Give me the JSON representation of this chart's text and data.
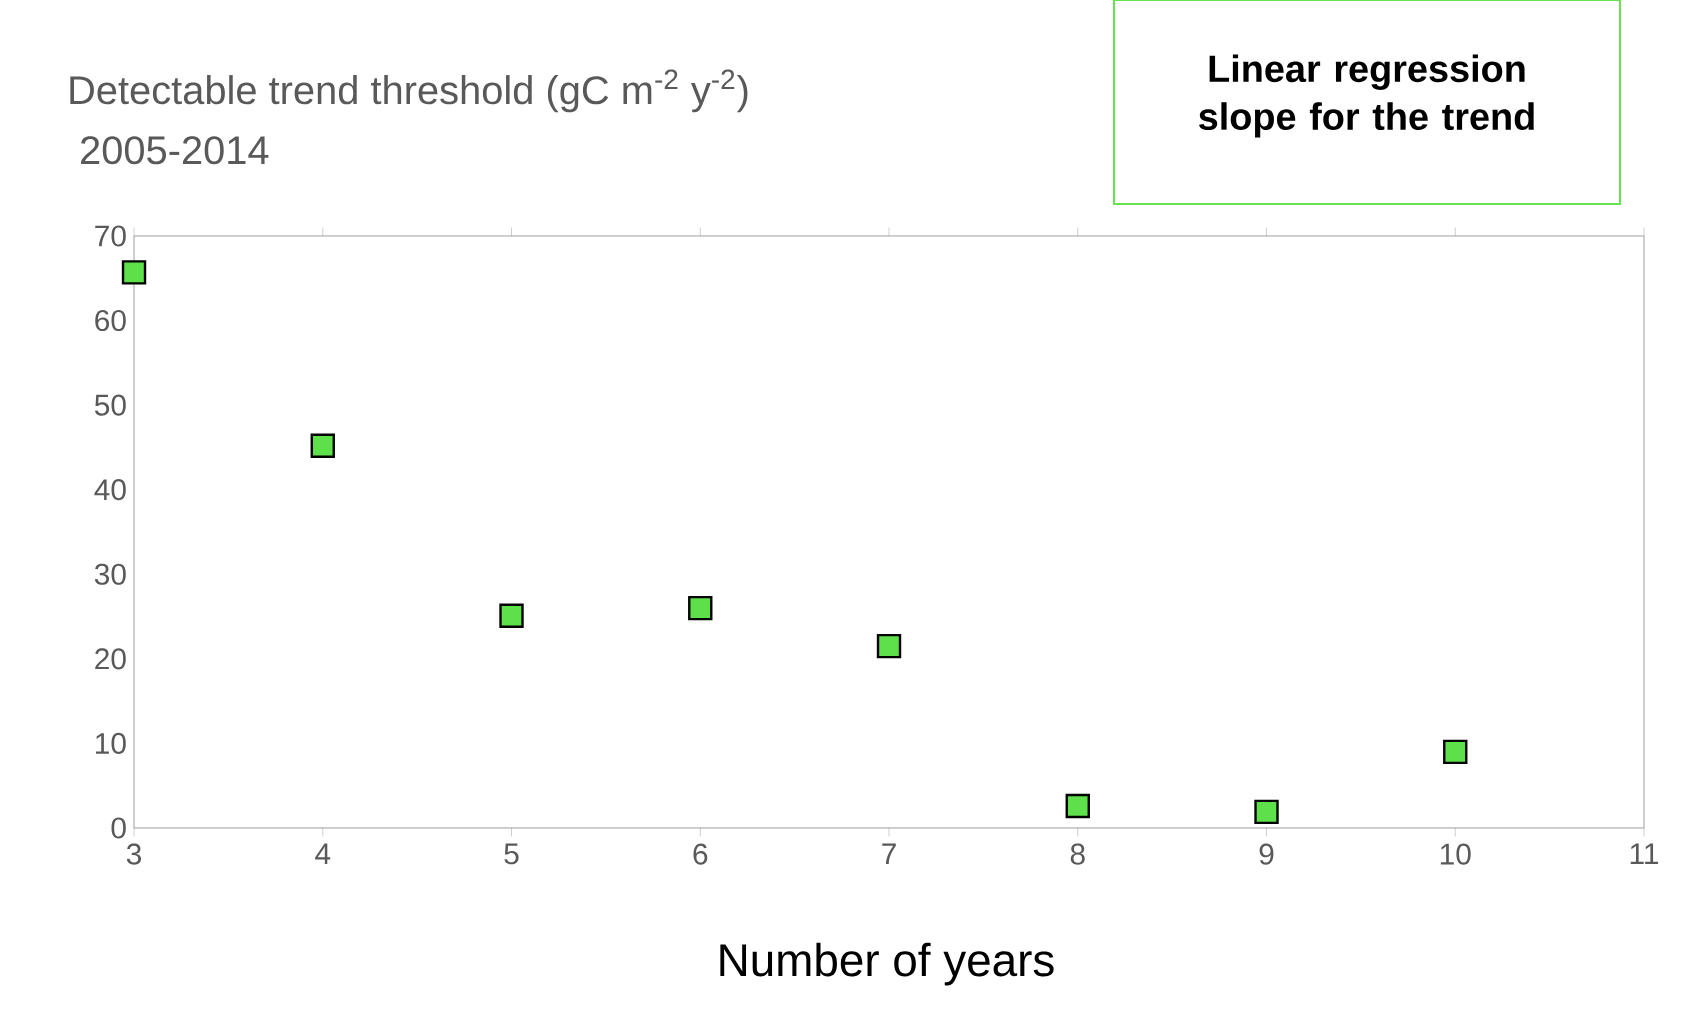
{
  "chart_data": {
    "type": "scatter",
    "title": "Detectable trend threshold (gC m$^{-2}$ y$^{-2}$)",
    "subtitle": "2005-2014",
    "xlabel": "Number of years",
    "annotations": [
      "Linear regression slope for the trend"
    ],
    "x": [
      3,
      4,
      5,
      6,
      7,
      8,
      9,
      10
    ],
    "values": [
      65.7,
      45.2,
      25.1,
      26.0,
      21.5,
      2.6,
      1.9,
      9.0
    ],
    "color": "#5ee04a",
    "marker": "square",
    "xlim": [
      3,
      11
    ],
    "xticks": [
      3,
      4,
      5,
      6,
      7,
      8,
      9,
      10,
      11
    ],
    "ylim": [
      0,
      70
    ],
    "yticks": [
      0,
      10,
      20,
      30,
      40,
      50,
      60,
      70
    ],
    "grid": false,
    "legend": false
  }
}
